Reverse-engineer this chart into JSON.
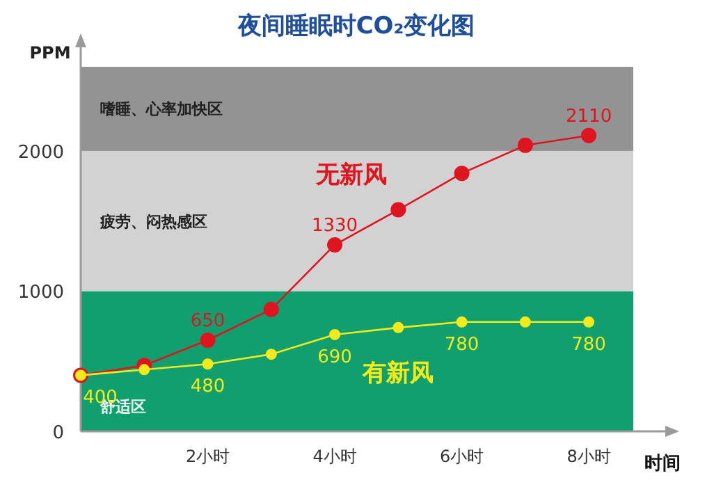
{
  "chart_data": {
    "type": "line",
    "title": "夜间睡眠时CO₂变化图",
    "ylabel": "PPM",
    "xlabel": "时间",
    "x": [
      0,
      1,
      2,
      3,
      4,
      5,
      6,
      7,
      8
    ],
    "xlim": [
      0,
      8.7
    ],
    "xticks": [
      {
        "value": 2,
        "label": "2小时"
      },
      {
        "value": 4,
        "label": "4小时"
      },
      {
        "value": 6,
        "label": "6小时"
      },
      {
        "value": 8,
        "label": "8小时"
      }
    ],
    "ylim": [
      0,
      2600
    ],
    "yticks": [
      0,
      1000,
      2000
    ],
    "bands": [
      {
        "axis": "y",
        "from": 0,
        "to": 1000,
        "label": "舒适区",
        "color": "#129f6f"
      },
      {
        "axis": "y",
        "from": 1000,
        "to": 2000,
        "label": "疲劳、闷热感区",
        "color": "#d2d2d2"
      },
      {
        "axis": "y",
        "from": 2000,
        "to": 2600,
        "label": "嗜睡、心率加快区",
        "color": "#939393"
      }
    ],
    "series": [
      {
        "name": "无新风",
        "color": "#e0141e",
        "values": [
          400,
          470,
          650,
          870,
          1330,
          1580,
          1840,
          2040,
          2110
        ],
        "value_labels": [
          null,
          null,
          "650",
          null,
          "1330",
          null,
          null,
          null,
          "2110"
        ]
      },
      {
        "name": "有新风",
        "color": "#f2ea1a",
        "values": [
          400,
          440,
          480,
          550,
          690,
          740,
          780,
          780,
          780
        ],
        "value_labels": [
          "400",
          null,
          "480",
          null,
          "690",
          null,
          "780",
          null,
          "780"
        ]
      }
    ],
    "marker": "circle",
    "grid": false
  }
}
